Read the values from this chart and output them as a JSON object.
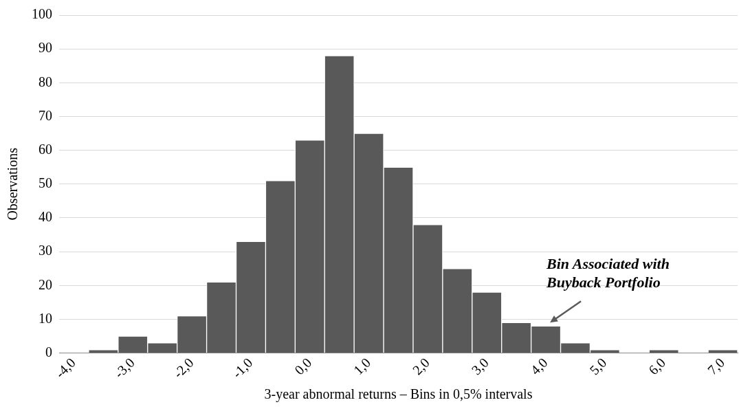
{
  "chart_data": {
    "type": "bar",
    "xlabel": "3-year abnormal returns – Bins in 0,5% intervals",
    "ylabel": "Observations",
    "categories": [
      "-4,0",
      null,
      "-3,0",
      null,
      "-2,0",
      null,
      "-1,0",
      null,
      "0,0",
      null,
      "1,0",
      null,
      "2,0",
      null,
      "3,0",
      null,
      "4,0",
      null,
      "5,0",
      null,
      "6,0",
      null,
      "7,0"
    ],
    "values": [
      0,
      1,
      5,
      3,
      11,
      21,
      33,
      51,
      63,
      88,
      65,
      55,
      38,
      25,
      18,
      9,
      8,
      3,
      1,
      0,
      1,
      0,
      1
    ],
    "color": "#595959",
    "ylim": [
      0,
      100
    ],
    "yticks": [
      0,
      10,
      20,
      30,
      40,
      50,
      60,
      70,
      80,
      90,
      100
    ],
    "grid": "y",
    "legend": false,
    "annotations": [
      {
        "text": "Bin Associated with Buyback Portfolio",
        "x": "4,0",
        "y": 8
      }
    ]
  }
}
